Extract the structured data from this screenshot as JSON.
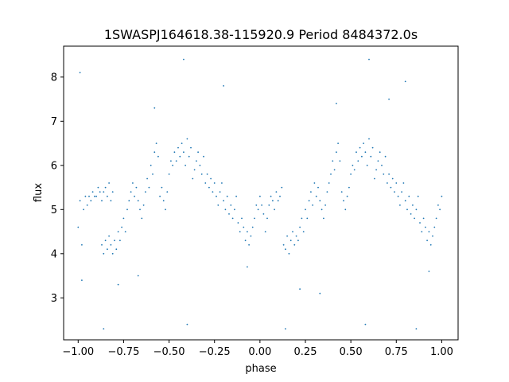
{
  "chart_data": {
    "type": "scatter",
    "title": "1SWASPJ164618.38-115920.9 Period 8484372.0s",
    "xlabel": "phase",
    "ylabel": "flux",
    "xlim": [
      -1.08,
      1.09
    ],
    "ylim": [
      2.05,
      8.7
    ],
    "grid": false,
    "legend": "none",
    "point_color": "#1f77b4",
    "xticks": [
      {
        "value": -1.0,
        "label": "−1.00"
      },
      {
        "value": -0.75,
        "label": "−0.75"
      },
      {
        "value": -0.5,
        "label": "−0.50"
      },
      {
        "value": -0.25,
        "label": "−0.25"
      },
      {
        "value": 0.0,
        "label": "0.00"
      },
      {
        "value": 0.25,
        "label": "0.25"
      },
      {
        "value": 0.5,
        "label": "0.50"
      },
      {
        "value": 0.75,
        "label": "0.75"
      },
      {
        "value": 1.0,
        "label": "1.00"
      }
    ],
    "yticks": [
      {
        "value": 3,
        "label": "3"
      },
      {
        "value": 4,
        "label": "4"
      },
      {
        "value": 5,
        "label": "5"
      },
      {
        "value": 6,
        "label": "6"
      },
      {
        "value": 7,
        "label": "7"
      },
      {
        "value": 8,
        "label": "8"
      }
    ],
    "series": [
      {
        "points": [
          [
            -1.0,
            4.6
          ],
          [
            -0.99,
            5.2
          ],
          [
            -0.98,
            4.2
          ],
          [
            -0.97,
            5.0
          ],
          [
            -0.96,
            5.3
          ],
          [
            -0.95,
            5.1
          ],
          [
            -0.94,
            5.3
          ],
          [
            -0.93,
            5.2
          ],
          [
            -0.92,
            5.4
          ],
          [
            -0.91,
            5.3
          ],
          [
            -0.9,
            5.3
          ],
          [
            -0.89,
            5.5
          ],
          [
            -0.88,
            5.4
          ],
          [
            -0.87,
            5.2
          ],
          [
            -0.86,
            5.4
          ],
          [
            -0.85,
            5.5
          ],
          [
            -0.84,
            5.3
          ],
          [
            -0.83,
            5.6
          ],
          [
            -0.82,
            5.2
          ],
          [
            -0.81,
            5.4
          ],
          [
            -0.87,
            4.2
          ],
          [
            -0.86,
            4.0
          ],
          [
            -0.85,
            4.3
          ],
          [
            -0.84,
            4.1
          ],
          [
            -0.83,
            4.4
          ],
          [
            -0.82,
            4.2
          ],
          [
            -0.81,
            4.0
          ],
          [
            -0.8,
            4.3
          ],
          [
            -0.79,
            4.1
          ],
          [
            -0.78,
            4.5
          ],
          [
            -0.77,
            4.3
          ],
          [
            -0.76,
            4.6
          ],
          [
            -0.75,
            4.8
          ],
          [
            -0.74,
            4.5
          ],
          [
            -0.73,
            5.0
          ],
          [
            -0.72,
            5.2
          ],
          [
            -0.71,
            5.4
          ],
          [
            -0.7,
            5.6
          ],
          [
            -0.69,
            5.3
          ],
          [
            -0.68,
            5.5
          ],
          [
            -0.67,
            5.2
          ],
          [
            -0.66,
            5.0
          ],
          [
            -0.65,
            4.8
          ],
          [
            -0.64,
            5.1
          ],
          [
            -0.63,
            5.4
          ],
          [
            -0.62,
            5.7
          ],
          [
            -0.61,
            5.5
          ],
          [
            -0.6,
            6.0
          ],
          [
            -0.59,
            5.8
          ],
          [
            -0.58,
            6.3
          ],
          [
            -0.57,
            6.5
          ],
          [
            -0.56,
            6.2
          ],
          [
            -0.55,
            5.3
          ],
          [
            -0.54,
            5.5
          ],
          [
            -0.53,
            5.2
          ],
          [
            -0.52,
            5.0
          ],
          [
            -0.51,
            5.4
          ],
          [
            -0.5,
            5.8
          ],
          [
            -0.49,
            6.1
          ],
          [
            -0.48,
            6.0
          ],
          [
            -0.47,
            6.3
          ],
          [
            -0.46,
            6.1
          ],
          [
            -0.45,
            6.4
          ],
          [
            -0.44,
            6.2
          ],
          [
            -0.43,
            6.5
          ],
          [
            -0.42,
            6.3
          ],
          [
            -0.41,
            6.0
          ],
          [
            -0.4,
            6.6
          ],
          [
            -0.39,
            6.2
          ],
          [
            -0.38,
            6.4
          ],
          [
            -0.37,
            5.7
          ],
          [
            -0.36,
            5.9
          ],
          [
            -0.35,
            6.1
          ],
          [
            -0.34,
            6.3
          ],
          [
            -0.33,
            6.0
          ],
          [
            -0.32,
            5.8
          ],
          [
            -0.31,
            6.2
          ],
          [
            -0.3,
            5.6
          ],
          [
            -0.29,
            5.8
          ],
          [
            -0.28,
            5.5
          ],
          [
            -0.27,
            5.7
          ],
          [
            -0.26,
            5.4
          ],
          [
            -0.25,
            5.6
          ],
          [
            -0.24,
            5.3
          ],
          [
            -0.23,
            5.1
          ],
          [
            -0.22,
            5.4
          ],
          [
            -0.21,
            5.6
          ],
          [
            -0.2,
            5.2
          ],
          [
            -0.19,
            5.0
          ],
          [
            -0.18,
            5.3
          ],
          [
            -0.17,
            4.9
          ],
          [
            -0.16,
            5.1
          ],
          [
            -0.15,
            4.8
          ],
          [
            -0.14,
            5.0
          ],
          [
            -0.13,
            5.3
          ],
          [
            -0.12,
            4.7
          ],
          [
            -0.11,
            4.5
          ],
          [
            -0.1,
            4.8
          ],
          [
            -0.09,
            4.6
          ],
          [
            -0.08,
            4.3
          ],
          [
            -0.07,
            4.5
          ],
          [
            -0.06,
            4.2
          ],
          [
            -0.05,
            4.4
          ],
          [
            -0.04,
            4.6
          ],
          [
            -0.03,
            4.8
          ],
          [
            -0.02,
            5.1
          ],
          [
            -0.01,
            5.0
          ],
          [
            0.0,
            5.3
          ],
          [
            0.01,
            5.1
          ],
          [
            0.02,
            4.9
          ],
          [
            0.03,
            4.5
          ],
          [
            0.04,
            4.8
          ],
          [
            0.05,
            5.1
          ],
          [
            0.06,
            5.3
          ],
          [
            0.07,
            5.2
          ],
          [
            0.08,
            5.0
          ],
          [
            0.09,
            5.4
          ],
          [
            0.1,
            5.2
          ],
          [
            0.11,
            5.3
          ],
          [
            0.12,
            5.5
          ],
          [
            0.13,
            4.2
          ],
          [
            0.14,
            4.1
          ],
          [
            0.15,
            4.4
          ],
          [
            0.16,
            4.0
          ],
          [
            0.17,
            4.3
          ],
          [
            0.18,
            4.5
          ],
          [
            0.19,
            4.2
          ],
          [
            0.2,
            4.4
          ],
          [
            0.21,
            4.3
          ],
          [
            0.22,
            4.6
          ],
          [
            0.23,
            4.8
          ],
          [
            0.24,
            4.5
          ],
          [
            0.25,
            5.0
          ],
          [
            0.26,
            4.8
          ],
          [
            0.27,
            5.2
          ],
          [
            0.28,
            5.4
          ],
          [
            0.29,
            5.1
          ],
          [
            0.3,
            5.6
          ],
          [
            0.31,
            5.3
          ],
          [
            0.32,
            5.5
          ],
          [
            0.33,
            5.2
          ],
          [
            0.34,
            5.0
          ],
          [
            0.35,
            4.8
          ],
          [
            0.36,
            5.1
          ],
          [
            0.37,
            5.4
          ],
          [
            0.38,
            5.6
          ],
          [
            0.39,
            5.8
          ],
          [
            0.4,
            6.1
          ],
          [
            0.41,
            5.9
          ],
          [
            0.42,
            6.3
          ],
          [
            0.43,
            6.5
          ],
          [
            0.44,
            6.1
          ],
          [
            0.45,
            5.4
          ],
          [
            0.46,
            5.2
          ],
          [
            0.47,
            5.0
          ],
          [
            0.48,
            5.3
          ],
          [
            0.49,
            5.5
          ],
          [
            0.5,
            5.8
          ],
          [
            0.51,
            6.0
          ],
          [
            0.52,
            5.9
          ],
          [
            0.53,
            6.3
          ],
          [
            0.54,
            6.1
          ],
          [
            0.55,
            6.4
          ],
          [
            0.56,
            6.2
          ],
          [
            0.57,
            6.5
          ],
          [
            0.58,
            6.3
          ],
          [
            0.59,
            6.0
          ],
          [
            0.6,
            6.6
          ],
          [
            0.61,
            6.2
          ],
          [
            0.62,
            6.4
          ],
          [
            0.63,
            5.7
          ],
          [
            0.64,
            5.9
          ],
          [
            0.65,
            6.1
          ],
          [
            0.66,
            6.3
          ],
          [
            0.67,
            6.0
          ],
          [
            0.68,
            5.8
          ],
          [
            0.69,
            6.2
          ],
          [
            0.7,
            5.6
          ],
          [
            0.71,
            5.8
          ],
          [
            0.72,
            5.5
          ],
          [
            0.73,
            5.7
          ],
          [
            0.74,
            5.4
          ],
          [
            0.75,
            5.6
          ],
          [
            0.76,
            5.3
          ],
          [
            0.77,
            5.1
          ],
          [
            0.78,
            5.4
          ],
          [
            0.79,
            5.6
          ],
          [
            0.8,
            5.2
          ],
          [
            0.81,
            5.0
          ],
          [
            0.82,
            5.3
          ],
          [
            0.83,
            4.9
          ],
          [
            0.84,
            5.1
          ],
          [
            0.85,
            4.8
          ],
          [
            0.86,
            5.0
          ],
          [
            0.87,
            5.3
          ],
          [
            0.88,
            4.7
          ],
          [
            0.89,
            4.5
          ],
          [
            0.9,
            4.8
          ],
          [
            0.91,
            4.6
          ],
          [
            0.92,
            4.3
          ],
          [
            0.93,
            4.5
          ],
          [
            0.94,
            4.2
          ],
          [
            0.95,
            4.4
          ],
          [
            0.96,
            4.6
          ],
          [
            0.97,
            4.8
          ],
          [
            0.98,
            5.1
          ],
          [
            0.99,
            5.0
          ],
          [
            1.0,
            5.3
          ],
          [
            -0.99,
            8.1
          ],
          [
            -0.42,
            8.4
          ],
          [
            0.6,
            8.4
          ],
          [
            -0.2,
            7.8
          ],
          [
            0.8,
            7.9
          ],
          [
            0.86,
            2.3
          ],
          [
            -0.86,
            2.3
          ],
          [
            0.14,
            2.3
          ],
          [
            -0.4,
            2.4
          ],
          [
            0.58,
            2.4
          ],
          [
            -0.98,
            3.4
          ],
          [
            0.33,
            3.1
          ],
          [
            -0.67,
            3.5
          ],
          [
            0.93,
            3.6
          ],
          [
            -0.07,
            3.7
          ],
          [
            0.42,
            7.4
          ],
          [
            -0.58,
            7.3
          ],
          [
            0.22,
            3.2
          ],
          [
            -0.78,
            3.3
          ],
          [
            0.71,
            7.5
          ]
        ]
      }
    ]
  }
}
